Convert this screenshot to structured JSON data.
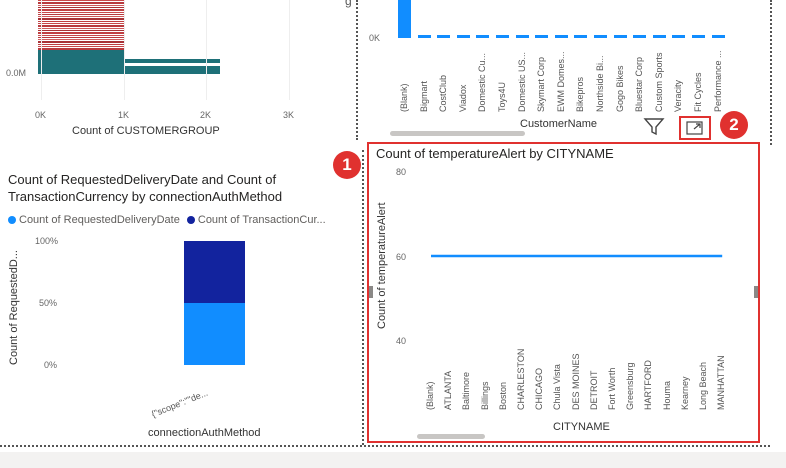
{
  "colors": {
    "accent_blue": "#118dff",
    "dark_navy": "#12239e",
    "teal": "#1e7078",
    "highlight_red": "#e0312f"
  },
  "top_left": {
    "y_tick": "0.0M",
    "x_ticks": [
      "0K",
      "1K",
      "2K",
      "3K"
    ],
    "xlabel": "Count of CUSTOMERGROUP"
  },
  "top_right": {
    "y_tick": "0K",
    "axis_title_fragment": "g",
    "categories": [
      "(Blank)",
      "Bigmart",
      "CostClub",
      "Viadox",
      "Domestic Cu...",
      "Toys4U",
      "Domestic US...",
      "Skymart Corp",
      "EWM Domes...",
      "Bikepros",
      "Northside Bi...",
      "Gogo Bikes",
      "Bluestar Corp",
      "Custom Sports",
      "Veracity",
      "Fit Cycles",
      "Performance ..."
    ],
    "xlabel": "CustomerName",
    "filter_icon": "filter-icon",
    "focus_icon": "focus-mode-icon"
  },
  "bottom_left": {
    "title": "Count of RequestedDeliveryDate and Count of TransactionCurrency by connectionAuthMethod",
    "legend": [
      "Count of RequestedDeliveryDate",
      "Count of TransactionCur..."
    ],
    "y_ticks": [
      "100%",
      "50%",
      "0%"
    ],
    "ylabel": "Count of RequestedD...",
    "category": "{\"scope\":\"\"de...",
    "xlabel": "connectionAuthMethod"
  },
  "bottom_right": {
    "title": "Count of temperatureAlert by CITYNAME",
    "y_ticks": [
      "80",
      "60",
      "40"
    ],
    "ylabel": "Count of temperatureAlert",
    "xlabel": "CITYNAME"
  },
  "badges": {
    "one": "1",
    "two": "2"
  },
  "chart_data": [
    {
      "type": "bar",
      "title": "",
      "xlabel": "Count of CUSTOMERGROUP",
      "x_ticks": [
        "0K",
        "1K",
        "2K",
        "3K"
      ],
      "y_ticks": [
        "0.0M"
      ]
    },
    {
      "type": "bar",
      "xlabel": "CustomerName",
      "categories": [
        "(Blank)",
        "Bigmart",
        "CostClub",
        "Viadox",
        "Domestic Cu...",
        "Toys4U",
        "Domestic US...",
        "Skymart Corp",
        "EWM Domes...",
        "Bikepros",
        "Northside Bi...",
        "Gogo Bikes",
        "Bluestar Corp",
        "Custom Sports",
        "Veracity",
        "Fit Cycles",
        "Performance ..."
      ],
      "y_ticks": [
        "0K"
      ]
    },
    {
      "type": "bar",
      "title": "Count of RequestedDeliveryDate and Count of TransactionCurrency by connectionAuthMethod",
      "categories": [
        "{\"scope\":\"\"de..."
      ],
      "series": [
        {
          "name": "Count of RequestedDeliveryDate",
          "values": [
            50
          ]
        },
        {
          "name": "Count of TransactionCur...",
          "values": [
            50
          ]
        }
      ],
      "ylim": [
        0,
        100
      ],
      "xlabel": "connectionAuthMethod",
      "ylabel": "Count of RequestedD..."
    },
    {
      "type": "line",
      "title": "Count of temperatureAlert by CITYNAME",
      "categories": [
        "(Blank)",
        "ATLANTA",
        "Baltimore",
        "Billings",
        "Boston",
        "CHARLESTON",
        "CHICAGO",
        "Chula Vista",
        "DES MOINES",
        "DETROIT",
        "Fort Worth",
        "Greensburg",
        "HARTFORD",
        "Houma",
        "Kearney",
        "Long Beach",
        "MANHATTAN"
      ],
      "values": [
        60,
        60,
        60,
        60,
        60,
        60,
        60,
        60,
        60,
        60,
        60,
        60,
        60,
        60,
        60,
        60,
        60
      ],
      "ylim": [
        40,
        80
      ],
      "xlabel": "CITYNAME",
      "ylabel": "Count of temperatureAlert"
    }
  ]
}
